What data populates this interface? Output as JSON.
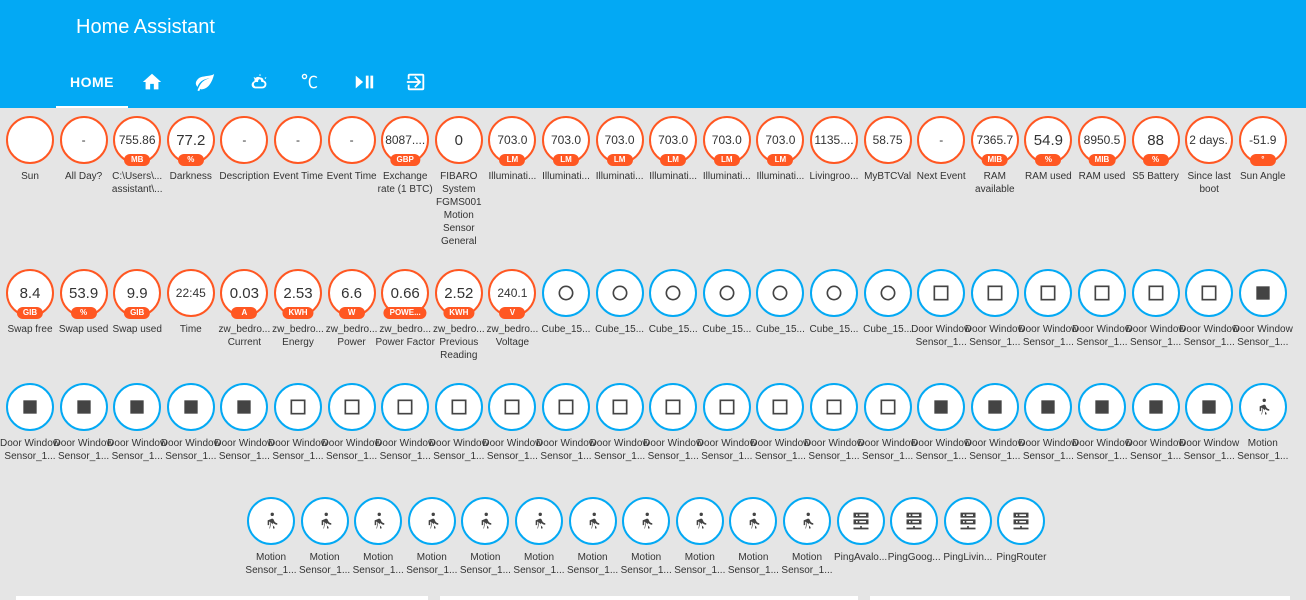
{
  "header": {
    "title": "Home Assistant"
  },
  "tabs": [
    {
      "label": "HOME",
      "icon": "text"
    },
    {
      "label": "",
      "icon": "home-icon"
    },
    {
      "label": "",
      "icon": "leaf-icon"
    },
    {
      "label": "",
      "icon": "weather-partly-cloudy-icon"
    },
    {
      "label": "",
      "icon": "thermometer-celsius-icon"
    },
    {
      "label": "",
      "icon": "play-pause-icon"
    },
    {
      "label": "",
      "icon": "exit-to-app-icon"
    }
  ],
  "colors": {
    "toolbar": "#03a9f4",
    "sensor_border": "#ff5722",
    "binary_border": "#03a9f4",
    "background": "#e5e5e5"
  },
  "badges": [
    {
      "value": "",
      "unit": "",
      "icon": "moon-icon",
      "border": "orange",
      "label": "Sun"
    },
    {
      "value": "-",
      "unit": "",
      "border": "orange",
      "label": "All Day?"
    },
    {
      "value": "755.86",
      "unit": "MB",
      "border": "orange",
      "label": "C:\\Users\\... assistant\\..."
    },
    {
      "value": "77.2",
      "unit": "%",
      "border": "orange",
      "label": "Darkness"
    },
    {
      "value": "-",
      "unit": "",
      "border": "orange",
      "label": "Description"
    },
    {
      "value": "-",
      "unit": "",
      "border": "orange",
      "label": "Event Time"
    },
    {
      "value": "-",
      "unit": "",
      "border": "orange",
      "label": "Event Time"
    },
    {
      "value": "8087....",
      "unit": "GBP",
      "border": "orange",
      "label": "Exchange rate (1 BTC)"
    },
    {
      "value": "0",
      "unit": "",
      "border": "orange",
      "label": "FIBARO System FGMS001 Motion Sensor General"
    },
    {
      "value": "703.0",
      "unit": "LM",
      "border": "orange",
      "label": "Illuminati..."
    },
    {
      "value": "703.0",
      "unit": "LM",
      "border": "orange",
      "label": "Illuminati..."
    },
    {
      "value": "703.0",
      "unit": "LM",
      "border": "orange",
      "label": "Illuminati..."
    },
    {
      "value": "703.0",
      "unit": "LM",
      "border": "orange",
      "label": "Illuminati..."
    },
    {
      "value": "703.0",
      "unit": "LM",
      "border": "orange",
      "label": "Illuminati..."
    },
    {
      "value": "703.0",
      "unit": "LM",
      "border": "orange",
      "label": "Illuminati..."
    },
    {
      "value": "1135....",
      "unit": "",
      "border": "orange",
      "label": "Livingroo..."
    },
    {
      "value": "58.75",
      "unit": "",
      "border": "orange",
      "label": "MyBTCVal"
    },
    {
      "value": "-",
      "unit": "",
      "border": "orange",
      "label": "Next Event"
    },
    {
      "value": "7365.7",
      "unit": "MIB",
      "border": "orange",
      "label": "RAM available"
    },
    {
      "value": "54.9",
      "unit": "%",
      "border": "orange",
      "label": "RAM used"
    },
    {
      "value": "8950.5",
      "unit": "MIB",
      "border": "orange",
      "label": "RAM used"
    },
    {
      "value": "88",
      "unit": "%",
      "border": "orange",
      "label": "S5 Battery"
    },
    {
      "value": "2 days...",
      "unit": "",
      "border": "orange",
      "label": "Since last boot"
    },
    {
      "value": "-51.9",
      "unit": "°",
      "border": "orange",
      "label": "Sun Angle"
    },
    {
      "value": "8.4",
      "unit": "GIB",
      "border": "orange",
      "label": "Swap free"
    },
    {
      "value": "53.9",
      "unit": "%",
      "border": "orange",
      "label": "Swap used"
    },
    {
      "value": "9.9",
      "unit": "GIB",
      "border": "orange",
      "label": "Swap used"
    },
    {
      "value": "22:45",
      "unit": "",
      "border": "orange",
      "label": "Time"
    },
    {
      "value": "0.03",
      "unit": "A",
      "border": "orange",
      "label": "zw_bedro... Current"
    },
    {
      "value": "2.53",
      "unit": "KWH",
      "border": "orange",
      "label": "zw_bedro... Energy"
    },
    {
      "value": "6.6",
      "unit": "W",
      "border": "orange",
      "label": "zw_bedro... Power"
    },
    {
      "value": "0.66",
      "unit": "POWE...",
      "border": "orange",
      "label": "zw_bedro... Power Factor"
    },
    {
      "value": "2.52",
      "unit": "KWH",
      "border": "orange",
      "label": "zw_bedro... Previous Reading"
    },
    {
      "value": "240.1",
      "unit": "V",
      "border": "orange",
      "label": "zw_bedro... Voltage"
    },
    {
      "value": "",
      "unit": "",
      "icon": "circle-outline-icon",
      "border": "blue",
      "label": "Cube_15..."
    },
    {
      "value": "",
      "unit": "",
      "icon": "circle-outline-icon",
      "border": "blue",
      "label": "Cube_15..."
    },
    {
      "value": "",
      "unit": "",
      "icon": "circle-outline-icon",
      "border": "blue",
      "label": "Cube_15..."
    },
    {
      "value": "",
      "unit": "",
      "icon": "circle-outline-icon",
      "border": "blue",
      "label": "Cube_15..."
    },
    {
      "value": "",
      "unit": "",
      "icon": "circle-outline-icon",
      "border": "blue",
      "label": "Cube_15..."
    },
    {
      "value": "",
      "unit": "",
      "icon": "circle-outline-icon",
      "border": "blue",
      "label": "Cube_15..."
    },
    {
      "value": "",
      "unit": "",
      "icon": "circle-outline-icon",
      "border": "blue",
      "label": "Cube_15..."
    },
    {
      "value": "",
      "unit": "",
      "icon": "square-outline-icon",
      "border": "blue",
      "label": "Door Window Sensor_1..."
    },
    {
      "value": "",
      "unit": "",
      "icon": "square-outline-icon",
      "border": "blue",
      "label": "Door Window Sensor_1..."
    },
    {
      "value": "",
      "unit": "",
      "icon": "square-outline-icon",
      "border": "blue",
      "label": "Door Window Sensor_1..."
    },
    {
      "value": "",
      "unit": "",
      "icon": "square-outline-icon",
      "border": "blue",
      "label": "Door Window Sensor_1..."
    },
    {
      "value": "",
      "unit": "",
      "icon": "square-outline-icon",
      "border": "blue",
      "label": "Door Window Sensor_1..."
    },
    {
      "value": "",
      "unit": "",
      "icon": "square-outline-icon",
      "border": "blue",
      "label": "Door Window Sensor_1..."
    },
    {
      "value": "",
      "unit": "",
      "icon": "square-filled-icon",
      "border": "blue",
      "label": "Door Window Sensor_1..."
    },
    {
      "value": "",
      "unit": "",
      "icon": "square-filled-icon",
      "border": "blue",
      "label": "Door Window Sensor_1..."
    },
    {
      "value": "",
      "unit": "",
      "icon": "square-filled-icon",
      "border": "blue",
      "label": "Door Window Sensor_1..."
    },
    {
      "value": "",
      "unit": "",
      "icon": "square-filled-icon",
      "border": "blue",
      "label": "Door Window Sensor_1..."
    },
    {
      "value": "",
      "unit": "",
      "icon": "square-filled-icon",
      "border": "blue",
      "label": "Door Window Sensor_1..."
    },
    {
      "value": "",
      "unit": "",
      "icon": "square-filled-icon",
      "border": "blue",
      "label": "Door Window Sensor_1..."
    },
    {
      "value": "",
      "unit": "",
      "icon": "square-outline-icon",
      "border": "blue",
      "label": "Door Window Sensor_1..."
    },
    {
      "value": "",
      "unit": "",
      "icon": "square-outline-icon",
      "border": "blue",
      "label": "Door Window Sensor_1..."
    },
    {
      "value": "",
      "unit": "",
      "icon": "square-outline-icon",
      "border": "blue",
      "label": "Door Window Sensor_1..."
    },
    {
      "value": "",
      "unit": "",
      "icon": "square-outline-icon",
      "border": "blue",
      "label": "Door Window Sensor_1..."
    },
    {
      "value": "",
      "unit": "",
      "icon": "square-outline-icon",
      "border": "blue",
      "label": "Door Window Sensor_1..."
    },
    {
      "value": "",
      "unit": "",
      "icon": "square-outline-icon",
      "border": "blue",
      "label": "Door Window Sensor_1..."
    },
    {
      "value": "",
      "unit": "",
      "icon": "square-outline-icon",
      "border": "blue",
      "label": "Door Window Sensor_1..."
    },
    {
      "value": "",
      "unit": "",
      "icon": "square-outline-icon",
      "border": "blue",
      "label": "Door Window Sensor_1..."
    },
    {
      "value": "",
      "unit": "",
      "icon": "square-outline-icon",
      "border": "blue",
      "label": "Door Window Sensor_1..."
    },
    {
      "value": "",
      "unit": "",
      "icon": "square-outline-icon",
      "border": "blue",
      "label": "Door Window Sensor_1..."
    },
    {
      "value": "",
      "unit": "",
      "icon": "square-outline-icon",
      "border": "blue",
      "label": "Door Window Sensor_1..."
    },
    {
      "value": "",
      "unit": "",
      "icon": "square-outline-icon",
      "border": "blue",
      "label": "Door Window Sensor_1..."
    },
    {
      "value": "",
      "unit": "",
      "icon": "square-filled-icon",
      "border": "blue",
      "label": "Door Window Sensor_1..."
    },
    {
      "value": "",
      "unit": "",
      "icon": "square-filled-icon",
      "border": "blue",
      "label": "Door Window Sensor_1..."
    },
    {
      "value": "",
      "unit": "",
      "icon": "square-filled-icon",
      "border": "blue",
      "label": "Door Window Sensor_1..."
    },
    {
      "value": "",
      "unit": "",
      "icon": "square-filled-icon",
      "border": "blue",
      "label": "Door Window Sensor_1..."
    },
    {
      "value": "",
      "unit": "",
      "icon": "square-filled-icon",
      "border": "blue",
      "label": "Door Window Sensor_1..."
    },
    {
      "value": "",
      "unit": "",
      "icon": "square-filled-icon",
      "border": "blue",
      "label": "Door Window Sensor_1..."
    },
    {
      "value": "",
      "unit": "",
      "icon": "walk-icon",
      "border": "blue",
      "label": "Motion Sensor_1..."
    },
    {
      "value": "",
      "unit": "",
      "icon": "walk-icon",
      "border": "blue",
      "label": "Motion Sensor_1..."
    },
    {
      "value": "",
      "unit": "",
      "icon": "walk-icon",
      "border": "blue",
      "label": "Motion Sensor_1..."
    },
    {
      "value": "",
      "unit": "",
      "icon": "walk-icon",
      "border": "blue",
      "label": "Motion Sensor_1..."
    },
    {
      "value": "",
      "unit": "",
      "icon": "walk-icon",
      "border": "blue",
      "label": "Motion Sensor_1..."
    },
    {
      "value": "",
      "unit": "",
      "icon": "walk-icon",
      "border": "blue",
      "label": "Motion Sensor_1..."
    },
    {
      "value": "",
      "unit": "",
      "icon": "walk-icon",
      "border": "blue",
      "label": "Motion Sensor_1..."
    },
    {
      "value": "",
      "unit": "",
      "icon": "walk-icon",
      "border": "blue",
      "label": "Motion Sensor_1..."
    },
    {
      "value": "",
      "unit": "",
      "icon": "walk-icon",
      "border": "blue",
      "label": "Motion Sensor_1..."
    },
    {
      "value": "",
      "unit": "",
      "icon": "walk-icon",
      "border": "blue",
      "label": "Motion Sensor_1..."
    },
    {
      "value": "",
      "unit": "",
      "icon": "walk-icon",
      "border": "blue",
      "label": "Motion Sensor_1..."
    },
    {
      "value": "",
      "unit": "",
      "icon": "walk-icon",
      "border": "blue",
      "label": "Motion Sensor_1..."
    },
    {
      "value": "",
      "unit": "",
      "icon": "server-network-icon",
      "border": "blue",
      "label": "PingAvalo..."
    },
    {
      "value": "",
      "unit": "",
      "icon": "server-network-icon",
      "border": "blue",
      "label": "PingGoog..."
    },
    {
      "value": "",
      "unit": "",
      "icon": "server-network-icon",
      "border": "blue",
      "label": "PingLivin..."
    },
    {
      "value": "",
      "unit": "",
      "icon": "server-network-icon",
      "border": "blue",
      "label": "PingRouter"
    }
  ]
}
